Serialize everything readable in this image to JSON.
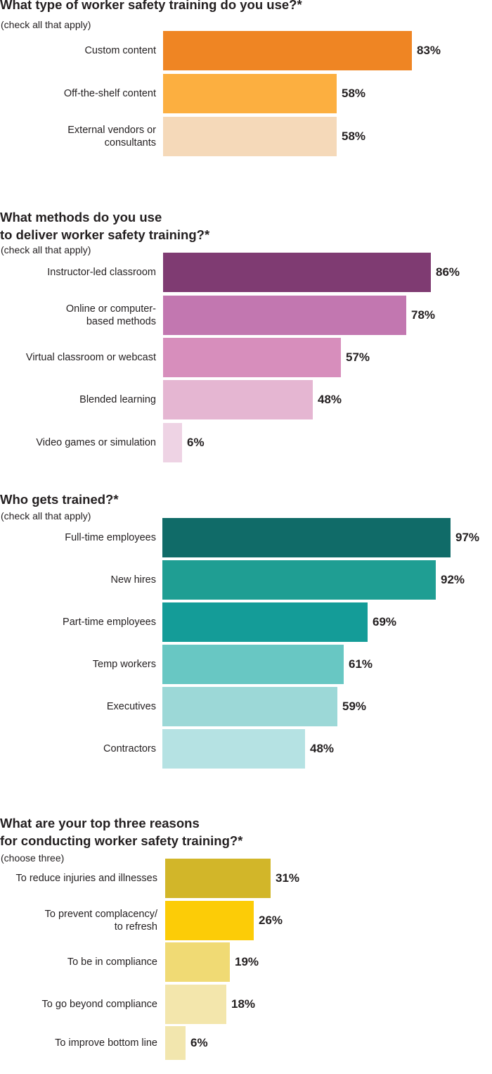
{
  "chart_data": [
    {
      "type": "bar",
      "orientation": "horizontal",
      "title": [
        "What type of worker safety training do you use?*"
      ],
      "subtitle": "(check all that apply)",
      "categories": [
        [
          "Custom content"
        ],
        [
          "Off-the-shelf content"
        ],
        [
          "External vendors or",
          "consultants"
        ]
      ],
      "values": [
        83,
        58,
        58
      ],
      "value_labels": [
        "83%",
        "58%",
        "58%"
      ],
      "colors": [
        "#ef8523",
        "#fcaf40",
        "#f5d9b9"
      ],
      "xlim": [
        0,
        100
      ]
    },
    {
      "type": "bar",
      "orientation": "horizontal",
      "title": [
        "What methods do you use",
        "to deliver worker safety training?*"
      ],
      "subtitle": "(check all that apply)",
      "categories": [
        [
          "Instructor-led classroom"
        ],
        [
          "Online or computer-",
          "based methods"
        ],
        [
          "Virtual classroom or webcast"
        ],
        [
          "Blended learning"
        ],
        [
          "Video games or simulation"
        ]
      ],
      "values": [
        86,
        78,
        57,
        48,
        6
      ],
      "value_labels": [
        "86%",
        "78%",
        "57%",
        "48%",
        "6%"
      ],
      "colors": [
        "#7f3b72",
        "#c277b0",
        "#d78ebc",
        "#e5b6d2",
        "#eed3e4"
      ],
      "xlim": [
        0,
        100
      ]
    },
    {
      "type": "bar",
      "orientation": "horizontal",
      "title": [
        "Who gets trained?*"
      ],
      "subtitle": "(check all that apply)",
      "categories": [
        [
          "Full-time employees"
        ],
        [
          "New hires"
        ],
        [
          "Part-time employees"
        ],
        [
          "Temp workers"
        ],
        [
          "Executives"
        ],
        [
          "Contractors"
        ]
      ],
      "values": [
        97,
        92,
        69,
        61,
        59,
        48
      ],
      "value_labels": [
        "97%",
        "92%",
        "69%",
        "61%",
        "59%",
        "48%"
      ],
      "colors": [
        "#106b68",
        "#1f9e93",
        "#149c98",
        "#68c7c3",
        "#9cd8d7",
        "#b5e2e3"
      ],
      "xlim": [
        0,
        100
      ]
    },
    {
      "type": "bar",
      "orientation": "horizontal",
      "title": [
        "What are your top three reasons",
        "for conducting worker safety training?*"
      ],
      "subtitle": "(choose three)",
      "categories": [
        [
          "To reduce injuries and illnesses"
        ],
        [
          "To prevent complacency/",
          "to refresh"
        ],
        [
          "To be in compliance"
        ],
        [
          "To go beyond compliance"
        ],
        [
          "To improve bottom line"
        ]
      ],
      "values": [
        31,
        26,
        19,
        18,
        6
      ],
      "value_labels": [
        "31%",
        "26%",
        "19%",
        "18%",
        "6%"
      ],
      "colors": [
        "#d2b629",
        "#fccc07",
        "#f0da74",
        "#f3e6ac",
        "#f2e6ae"
      ],
      "xlim": [
        0,
        35
      ]
    }
  ]
}
